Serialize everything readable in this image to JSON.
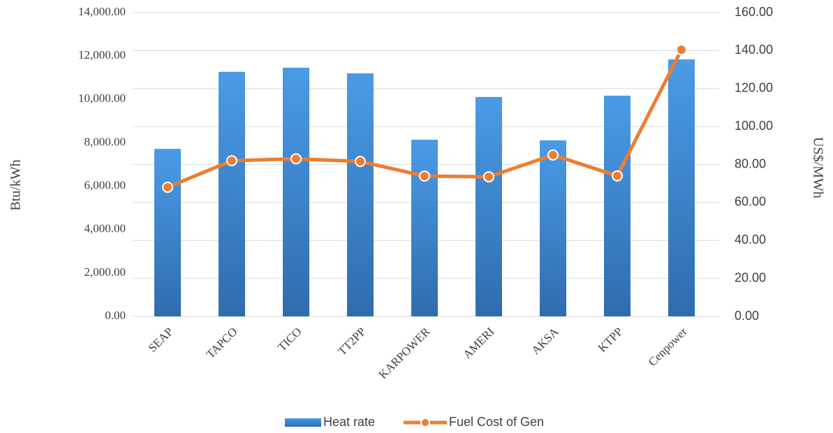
{
  "chart_data": {
    "type": "bar-line",
    "categories": [
      "SEAP",
      "TAPCO",
      "TICO",
      "TT2PP",
      "KARPOWER",
      "AMERI",
      "AKSA",
      "KTPP",
      "Cenpower"
    ],
    "series": [
      {
        "name": "Heat rate",
        "type": "bar",
        "color": "#3f8fd8",
        "values": [
          7720,
          11270,
          11460,
          11200,
          8140,
          10110,
          8110,
          10170,
          11840
        ]
      },
      {
        "name": "Fuel Cost of Gen",
        "type": "line",
        "axis": "y2",
        "color": "#ed7d31",
        "values": [
          68,
          82,
          83,
          81.6,
          73.9,
          73.5,
          85,
          74,
          140.4
        ]
      }
    ],
    "ylabel": "Btu/kWh",
    "y2label": "US$/MWh",
    "ylim": [
      0,
      14000
    ],
    "yticks": [
      {
        "value": 0,
        "label": "0.00"
      },
      {
        "value": 2000,
        "label": "2,000.00"
      },
      {
        "value": 4000,
        "label": "4,000.00"
      },
      {
        "value": 6000,
        "label": "6,000.00"
      },
      {
        "value": 8000,
        "label": "8,000.00"
      },
      {
        "value": 10000,
        "label": "10,000.00"
      },
      {
        "value": 12000,
        "label": "12,000.00"
      },
      {
        "value": 14000,
        "label": "14,000.00"
      }
    ],
    "y2lim": [
      0,
      160
    ],
    "y2ticks": [
      {
        "value": 0,
        "label": "0.00"
      },
      {
        "value": 20,
        "label": "20.00"
      },
      {
        "value": 40,
        "label": "40.00"
      },
      {
        "value": 60,
        "label": "60.00"
      },
      {
        "value": 80,
        "label": "80.00"
      },
      {
        "value": 100,
        "label": "100.00"
      },
      {
        "value": 120,
        "label": "120.00"
      },
      {
        "value": 140,
        "label": "140.00"
      },
      {
        "value": 160,
        "label": "160.00"
      }
    ],
    "grid": true,
    "legend": "bottom"
  }
}
